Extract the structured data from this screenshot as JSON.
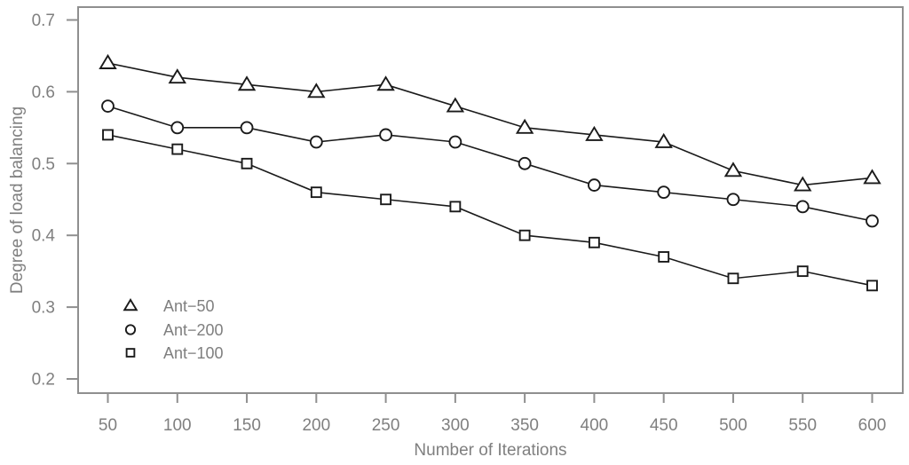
{
  "chart_data": {
    "type": "line",
    "x": [
      50,
      100,
      150,
      200,
      250,
      300,
      350,
      400,
      450,
      500,
      550,
      600
    ],
    "series": [
      {
        "name": "Ant−50",
        "marker": "triangle",
        "values": [
          0.64,
          0.62,
          0.61,
          0.6,
          0.61,
          0.58,
          0.55,
          0.54,
          0.53,
          0.49,
          0.47,
          0.48
        ]
      },
      {
        "name": "Ant−200",
        "marker": "circle",
        "values": [
          0.58,
          0.55,
          0.55,
          0.53,
          0.54,
          0.53,
          0.5,
          0.47,
          0.46,
          0.45,
          0.44,
          0.42
        ]
      },
      {
        "name": "Ant−100",
        "marker": "square",
        "values": [
          0.54,
          0.52,
          0.5,
          0.46,
          0.45,
          0.44,
          0.4,
          0.39,
          0.37,
          0.34,
          0.35,
          0.33
        ]
      }
    ],
    "title": "",
    "xlabel": "Number of Iterations",
    "ylabel": "Degree of load balancing",
    "xticks": [
      50,
      100,
      150,
      200,
      250,
      300,
      350,
      400,
      450,
      500,
      550,
      600
    ],
    "yticks": [
      "0.2",
      "0.3",
      "0.4",
      "0.5",
      "0.6",
      "0.7"
    ],
    "ylim": [
      0.2,
      0.7
    ],
    "xlim": [
      50,
      600
    ],
    "grid": false,
    "legend_position": "lower-left",
    "colors": {
      "line": "#1a1a1a",
      "marker_stroke": "#1a1a1a",
      "marker_fill": "#ffffff",
      "frame": "#8f8f8f",
      "tick": "#8f8f8f",
      "text": "#7f7f7f",
      "background": "#ffffff"
    }
  }
}
